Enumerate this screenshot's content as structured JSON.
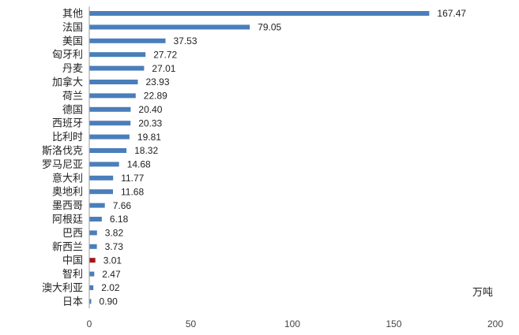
{
  "chart_data": {
    "type": "bar",
    "orientation": "horizontal",
    "unit": "万吨",
    "categories": [
      "其他",
      "法国",
      "美国",
      "匈牙利",
      "丹麦",
      "加拿大",
      "荷兰",
      "德国",
      "西班牙",
      "比利时",
      "斯洛伐克",
      "罗马尼亚",
      "意大利",
      "奥地利",
      "墨西哥",
      "阿根廷",
      "巴西",
      "新西兰",
      "中国",
      "智利",
      "澳大利亚",
      "日本"
    ],
    "values": [
      167.47,
      79.05,
      37.53,
      27.72,
      27.01,
      23.93,
      22.89,
      20.4,
      20.33,
      19.81,
      18.32,
      14.68,
      11.77,
      11.68,
      7.66,
      6.18,
      3.82,
      3.73,
      3.01,
      2.47,
      2.02,
      0.9
    ],
    "value_labels": [
      "167.47",
      "79.05",
      "37.53",
      "27.72",
      "27.01",
      "23.93",
      "22.89",
      "20.40",
      "20.33",
      "19.81",
      "18.32",
      "14.68",
      "11.77",
      "11.68",
      "7.66",
      "6.18",
      "3.82",
      "3.73",
      "3.01",
      "2.47",
      "2.02",
      "0.90"
    ],
    "xlim": [
      0,
      200
    ],
    "xticks": [
      "0",
      "50",
      "100",
      "150",
      "200"
    ],
    "grid": false,
    "colors": {
      "default": "#4a7ebb",
      "highlight": "#a3161a",
      "highlight_category": "中国"
    }
  }
}
